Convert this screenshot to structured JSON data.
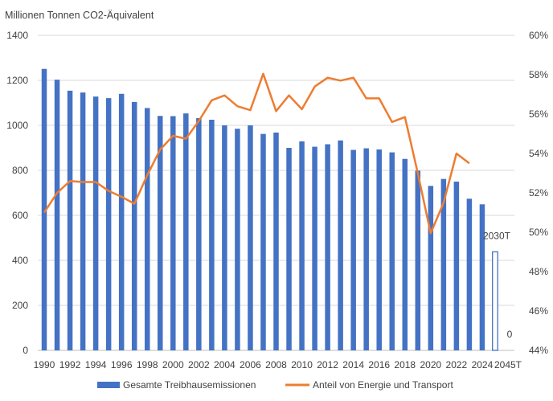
{
  "chart_data": {
    "type": "bar",
    "title": "Millionen Tonnen CO2-Äquivalent",
    "categories": [
      "1990",
      "1991",
      "1992",
      "1993",
      "1994",
      "1995",
      "1996",
      "1997",
      "1998",
      "1999",
      "2000",
      "2001",
      "2002",
      "2003",
      "2004",
      "2005",
      "2006",
      "2007",
      "2008",
      "2009",
      "2010",
      "2011",
      "2012",
      "2013",
      "2014",
      "2015",
      "2016",
      "2017",
      "2018",
      "2019",
      "2020",
      "2021",
      "2022",
      "2023",
      "2024",
      "2030T",
      "2045T"
    ],
    "x_tick_labels": [
      "1990",
      "1992",
      "1994",
      "1996",
      "1998",
      "2000",
      "2002",
      "2004",
      "2006",
      "2008",
      "2010",
      "2012",
      "2014",
      "2016",
      "2018",
      "2020",
      "2022",
      "2024",
      "2045T"
    ],
    "series": [
      {
        "name": "Gesamte Treibhausemissionen",
        "type": "bar",
        "axis": "left",
        "color": "#4472c4",
        "values": [
          1251,
          1203,
          1154,
          1146,
          1128,
          1121,
          1140,
          1104,
          1077,
          1042,
          1041,
          1053,
          1032,
          1025,
          1000,
          985,
          1000,
          962,
          968,
          900,
          929,
          905,
          916,
          933,
          891,
          898,
          893,
          880,
          851,
          799,
          731,
          762,
          750,
          674,
          649,
          438,
          0
        ],
        "target_categories": [
          "2030T",
          "2045T"
        ]
      },
      {
        "name": "Anteil von Energie und Transport",
        "type": "line",
        "axis": "right",
        "color": "#ed7d31",
        "values": [
          51.0,
          52.0,
          52.6,
          52.55,
          52.55,
          52.1,
          51.8,
          51.45,
          52.9,
          54.2,
          54.9,
          54.75,
          55.65,
          56.7,
          56.95,
          56.4,
          56.2,
          58.05,
          56.15,
          56.95,
          56.25,
          57.4,
          57.85,
          57.7,
          57.85,
          56.8,
          56.8,
          55.6,
          55.85,
          53.0,
          49.95,
          51.5,
          54.0,
          53.5,
          null,
          null,
          null
        ]
      }
    ],
    "y_left": {
      "min": 0,
      "max": 1400,
      "ticks": [
        "0",
        "200",
        "400",
        "600",
        "800",
        "1000",
        "1200",
        "1400"
      ]
    },
    "y_right": {
      "min": 44,
      "max": 60,
      "ticks": [
        "44%",
        "46%",
        "48%",
        "50%",
        "52%",
        "54%",
        "56%",
        "58%",
        "60%"
      ]
    },
    "data_labels": [
      {
        "category": "2030T",
        "text": "2030T"
      },
      {
        "category": "2045T",
        "text": "0"
      }
    ],
    "grid": true,
    "legend_position": "bottom"
  }
}
